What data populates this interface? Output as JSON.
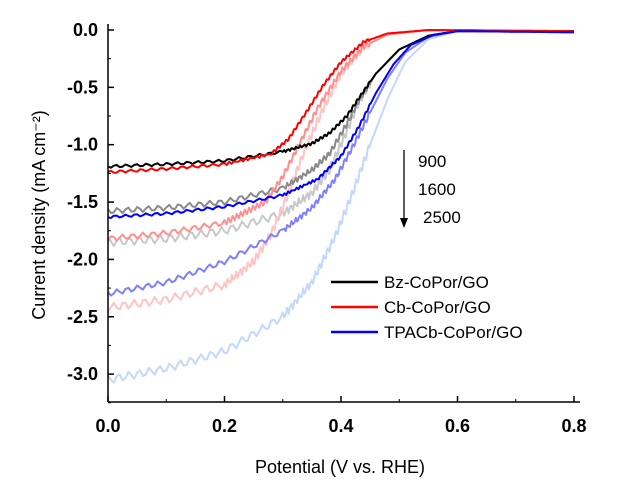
{
  "chart_data": {
    "type": "line",
    "xlabel": "Potential (V vs. RHE)",
    "ylabel": "Current density (mA cm⁻²)",
    "xlim": [
      0,
      0.8
    ],
    "ylim": [
      -3.25,
      0.05
    ],
    "xticks": [
      "0.0",
      "0.2",
      "0.4",
      "0.6",
      "0.8"
    ],
    "yticks": [
      "0.0",
      "-0.5",
      "-1.0",
      "-1.5",
      "-2.0",
      "-2.5",
      "-3.0"
    ],
    "annotation": {
      "labels": [
        "900",
        "1600",
        "2500"
      ],
      "arrow": "down"
    },
    "legend": {
      "placement": "bottom-right",
      "entries": [
        "Bz-CoPor/GO",
        "Cb-CoPor/GO",
        "TPACb-CoPor/GO"
      ]
    },
    "series": [
      {
        "name": "Bz-CoPor/GO 900",
        "color": "#000000",
        "x": [
          0,
          0.1,
          0.2,
          0.3,
          0.35,
          0.38,
          0.41,
          0.43,
          0.46,
          0.5,
          0.55,
          0.6,
          0.8
        ],
        "y": [
          -1.19,
          -1.17,
          -1.14,
          -1.06,
          -0.99,
          -0.9,
          -0.75,
          -0.6,
          -0.38,
          -0.17,
          -0.05,
          -0.01,
          -0.01
        ]
      },
      {
        "name": "Bz-CoPor/GO 1600",
        "color": "#8a8a8a",
        "x": [
          0,
          0.1,
          0.2,
          0.3,
          0.35,
          0.38,
          0.41,
          0.43,
          0.46,
          0.5,
          0.55,
          0.6,
          0.8
        ],
        "y": [
          -1.58,
          -1.55,
          -1.5,
          -1.38,
          -1.22,
          -1.08,
          -0.82,
          -0.62,
          -0.38,
          -0.17,
          -0.05,
          -0.01,
          -0.01
        ]
      },
      {
        "name": "Bz-CoPor/GO 2500",
        "color": "#c8c8c8",
        "x": [
          0,
          0.1,
          0.2,
          0.3,
          0.35,
          0.38,
          0.41,
          0.43,
          0.46,
          0.5,
          0.55,
          0.6,
          0.8
        ],
        "y": [
          -1.85,
          -1.82,
          -1.75,
          -1.6,
          -1.42,
          -1.22,
          -0.88,
          -0.63,
          -0.38,
          -0.17,
          -0.05,
          -0.01,
          -0.01
        ]
      },
      {
        "name": "Cb-CoPor/GO 900",
        "color": "#ff0000",
        "x": [
          0,
          0.1,
          0.2,
          0.28,
          0.31,
          0.34,
          0.37,
          0.4,
          0.44,
          0.48,
          0.55,
          0.8
        ],
        "y": [
          -1.24,
          -1.21,
          -1.17,
          -1.08,
          -0.95,
          -0.72,
          -0.48,
          -0.28,
          -0.1,
          -0.03,
          0,
          -0.01
        ]
      },
      {
        "name": "Cb-CoPor/GO 1600",
        "color": "#ff9090",
        "x": [
          0,
          0.1,
          0.2,
          0.27,
          0.3,
          0.33,
          0.36,
          0.4,
          0.44,
          0.48,
          0.55,
          0.8
        ],
        "y": [
          -1.82,
          -1.77,
          -1.68,
          -1.5,
          -1.28,
          -0.98,
          -0.68,
          -0.36,
          -0.14,
          -0.04,
          0,
          -0.01
        ]
      },
      {
        "name": "Cb-CoPor/GO 2500",
        "color": "#ffc4c4",
        "x": [
          0,
          0.1,
          0.2,
          0.25,
          0.28,
          0.31,
          0.34,
          0.37,
          0.4,
          0.44,
          0.48,
          0.55,
          0.8
        ],
        "y": [
          -2.42,
          -2.35,
          -2.22,
          -2.02,
          -1.78,
          -1.42,
          -1.02,
          -0.68,
          -0.38,
          -0.14,
          -0.04,
          0,
          -0.01
        ]
      },
      {
        "name": "TPACb-CoPor/GO 900",
        "color": "#0000ff",
        "x": [
          0,
          0.1,
          0.2,
          0.3,
          0.36,
          0.4,
          0.43,
          0.46,
          0.49,
          0.52,
          0.56,
          0.6,
          0.8
        ],
        "y": [
          -1.63,
          -1.6,
          -1.54,
          -1.44,
          -1.3,
          -1.1,
          -0.85,
          -0.55,
          -0.3,
          -0.13,
          -0.04,
          -0.01,
          -0.02
        ]
      },
      {
        "name": "TPACb-CoPor/GO 1600",
        "color": "#8080ff",
        "x": [
          0,
          0.1,
          0.2,
          0.3,
          0.35,
          0.39,
          0.42,
          0.45,
          0.48,
          0.51,
          0.55,
          0.6,
          0.8
        ],
        "y": [
          -2.3,
          -2.2,
          -2.02,
          -1.75,
          -1.55,
          -1.3,
          -1.02,
          -0.72,
          -0.42,
          -0.2,
          -0.06,
          -0.01,
          -0.02
        ]
      },
      {
        "name": "TPACb-CoPor/GO 2500",
        "color": "#c4d8ff",
        "x": [
          0,
          0.1,
          0.2,
          0.3,
          0.35,
          0.39,
          0.42,
          0.45,
          0.48,
          0.51,
          0.55,
          0.6,
          0.8
        ],
        "y": [
          -3.05,
          -2.95,
          -2.8,
          -2.5,
          -2.2,
          -1.8,
          -1.42,
          -1.0,
          -0.6,
          -0.28,
          -0.08,
          -0.01,
          -0.02
        ]
      }
    ]
  }
}
